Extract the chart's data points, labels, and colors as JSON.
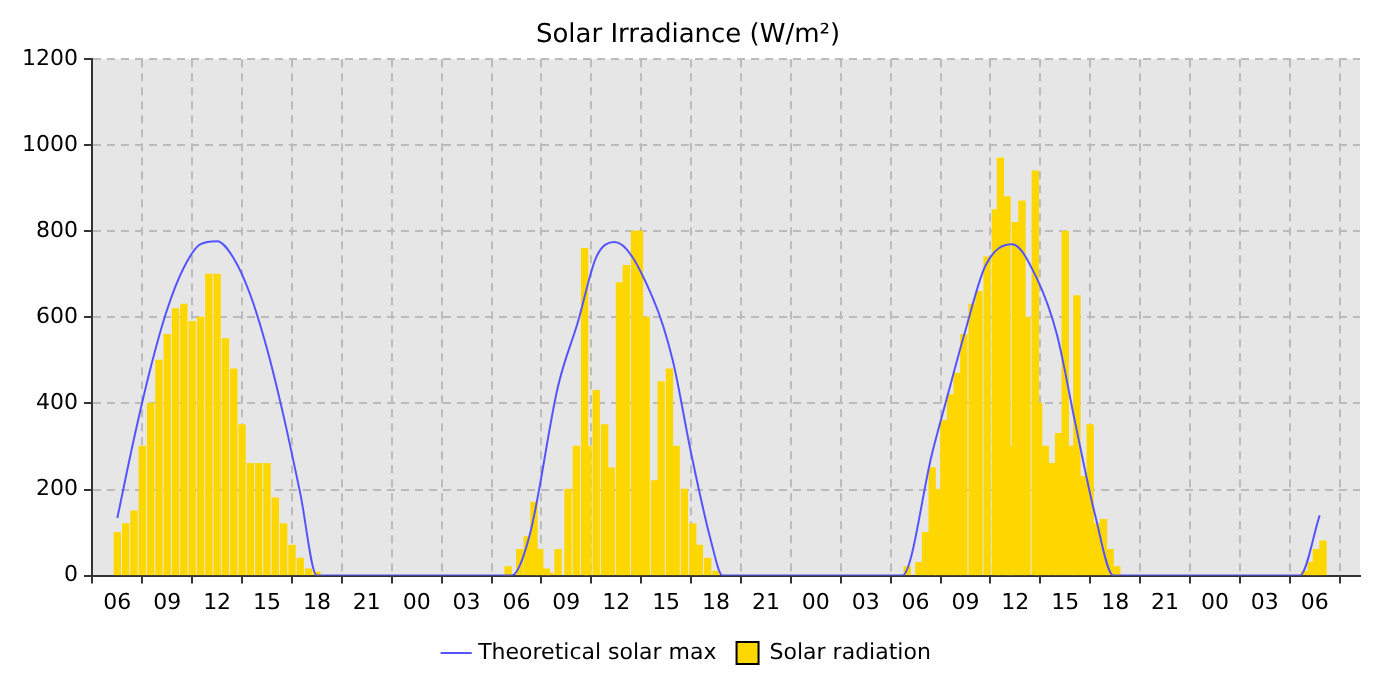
{
  "chart_data": {
    "type": "bar",
    "title": "Solar Irradiance (W/m²)",
    "xlim": [
      6,
      79.2
    ],
    "xticks": [
      {
        "value": 6,
        "label": "06"
      },
      {
        "value": 9,
        "label": "09"
      },
      {
        "value": 12,
        "label": "12"
      },
      {
        "value": 15,
        "label": "15"
      },
      {
        "value": 18,
        "label": "18"
      },
      {
        "value": 21,
        "label": "21"
      },
      {
        "value": 24,
        "label": "00"
      },
      {
        "value": 27,
        "label": "03"
      },
      {
        "value": 30,
        "label": "06"
      },
      {
        "value": 33,
        "label": "09"
      },
      {
        "value": 36,
        "label": "12"
      },
      {
        "value": 39,
        "label": "15"
      },
      {
        "value": 42,
        "label": "18"
      },
      {
        "value": 45,
        "label": "21"
      },
      {
        "value": 48,
        "label": "00"
      },
      {
        "value": 51,
        "label": "03"
      },
      {
        "value": 54,
        "label": "06"
      },
      {
        "value": 57,
        "label": "09"
      },
      {
        "value": 60,
        "label": "12"
      },
      {
        "value": 63,
        "label": "15"
      },
      {
        "value": 66,
        "label": "18"
      },
      {
        "value": 69,
        "label": "21"
      },
      {
        "value": 72,
        "label": "00"
      },
      {
        "value": 75,
        "label": "03"
      },
      {
        "value": 78,
        "label": "06"
      }
    ],
    "ylim": [
      0,
      1200
    ],
    "yticks": [
      0,
      200,
      400,
      600,
      800,
      1000,
      1200
    ],
    "grid": true,
    "legend": "bottom",
    "series": [
      {
        "name": "Theoretical solar max",
        "type": "line",
        "color": "#5555ff",
        "x": [
          6,
          7,
          8,
          9,
          10,
          11,
          12,
          13,
          14,
          15,
          16,
          17,
          18,
          24,
          29.7,
          30.8,
          32.5,
          33.7,
          34.8,
          35.9,
          38.2,
          39.4,
          40.5,
          41.7,
          42.4,
          48,
          53.2,
          55.0,
          55.9,
          57.0,
          58.2,
          59.8,
          61.3,
          62.5,
          63.6,
          64.8,
          65.9,
          72,
          77.1,
          78.3
        ],
        "values": [
          134,
          318,
          483,
          619,
          716,
          770,
          777,
          737,
          652,
          527,
          370,
          191,
          0,
          0,
          0,
          95,
          440,
          590,
          740,
          775,
          645,
          500,
          285,
          80,
          0,
          0,
          0,
          285,
          415,
          570,
          720,
          770,
          690,
          560,
          355,
          140,
          0,
          0,
          0,
          140
        ]
      },
      {
        "name": "Solar radiation",
        "color": "#ffd700",
        "x": [
          6,
          6.5,
          7,
          7.5,
          8,
          8.5,
          9,
          9.5,
          10,
          10.5,
          11,
          11.5,
          12,
          12.5,
          13,
          13.5,
          14,
          14.5,
          15,
          15.5,
          16,
          16.5,
          17,
          17.5,
          18,
          29.5,
          30.2,
          30.65,
          31.05,
          31.4,
          31.8,
          32.0,
          32.5,
          33.1,
          33.6,
          34.1,
          34.3,
          34.8,
          35.3,
          35.7,
          36.2,
          36.6,
          37.1,
          37.4,
          37.8,
          38.3,
          38.7,
          39.2,
          39.6,
          40.1,
          40.6,
          41.0,
          41.5,
          42.0,
          53.5,
          54.2,
          54.6,
          55.0,
          55.3,
          55.7,
          56.1,
          56.5,
          56.9,
          57.4,
          57.8,
          58.3,
          58.8,
          59.1,
          59.5,
          59.7,
          60.0,
          60.4,
          60.7,
          61.2,
          61.4,
          61.8,
          62.2,
          62.6,
          63.0,
          63.4,
          63.7,
          64.1,
          64.5,
          64.9,
          65.3,
          65.7,
          66.1,
          77.4,
          77.8,
          78.1,
          78.5
        ],
        "values": [
          100,
          120,
          150,
          300,
          400,
          500,
          560,
          620,
          630,
          590,
          600,
          700,
          700,
          550,
          480,
          350,
          260,
          260,
          260,
          180,
          120,
          70,
          40,
          15,
          8,
          20,
          60,
          90,
          170,
          60,
          15,
          5,
          60,
          200,
          300,
          760,
          300,
          430,
          350,
          250,
          680,
          720,
          800,
          800,
          600,
          220,
          450,
          480,
          300,
          200,
          120,
          70,
          40,
          10,
          20,
          30,
          100,
          250,
          200,
          360,
          420,
          470,
          560,
          630,
          660,
          740,
          850,
          970,
          880,
          300,
          820,
          870,
          600,
          940,
          400,
          300,
          260,
          330,
          800,
          300,
          650,
          230,
          350,
          120,
          130,
          60,
          20,
          10,
          30,
          60,
          80
        ]
      }
    ]
  }
}
